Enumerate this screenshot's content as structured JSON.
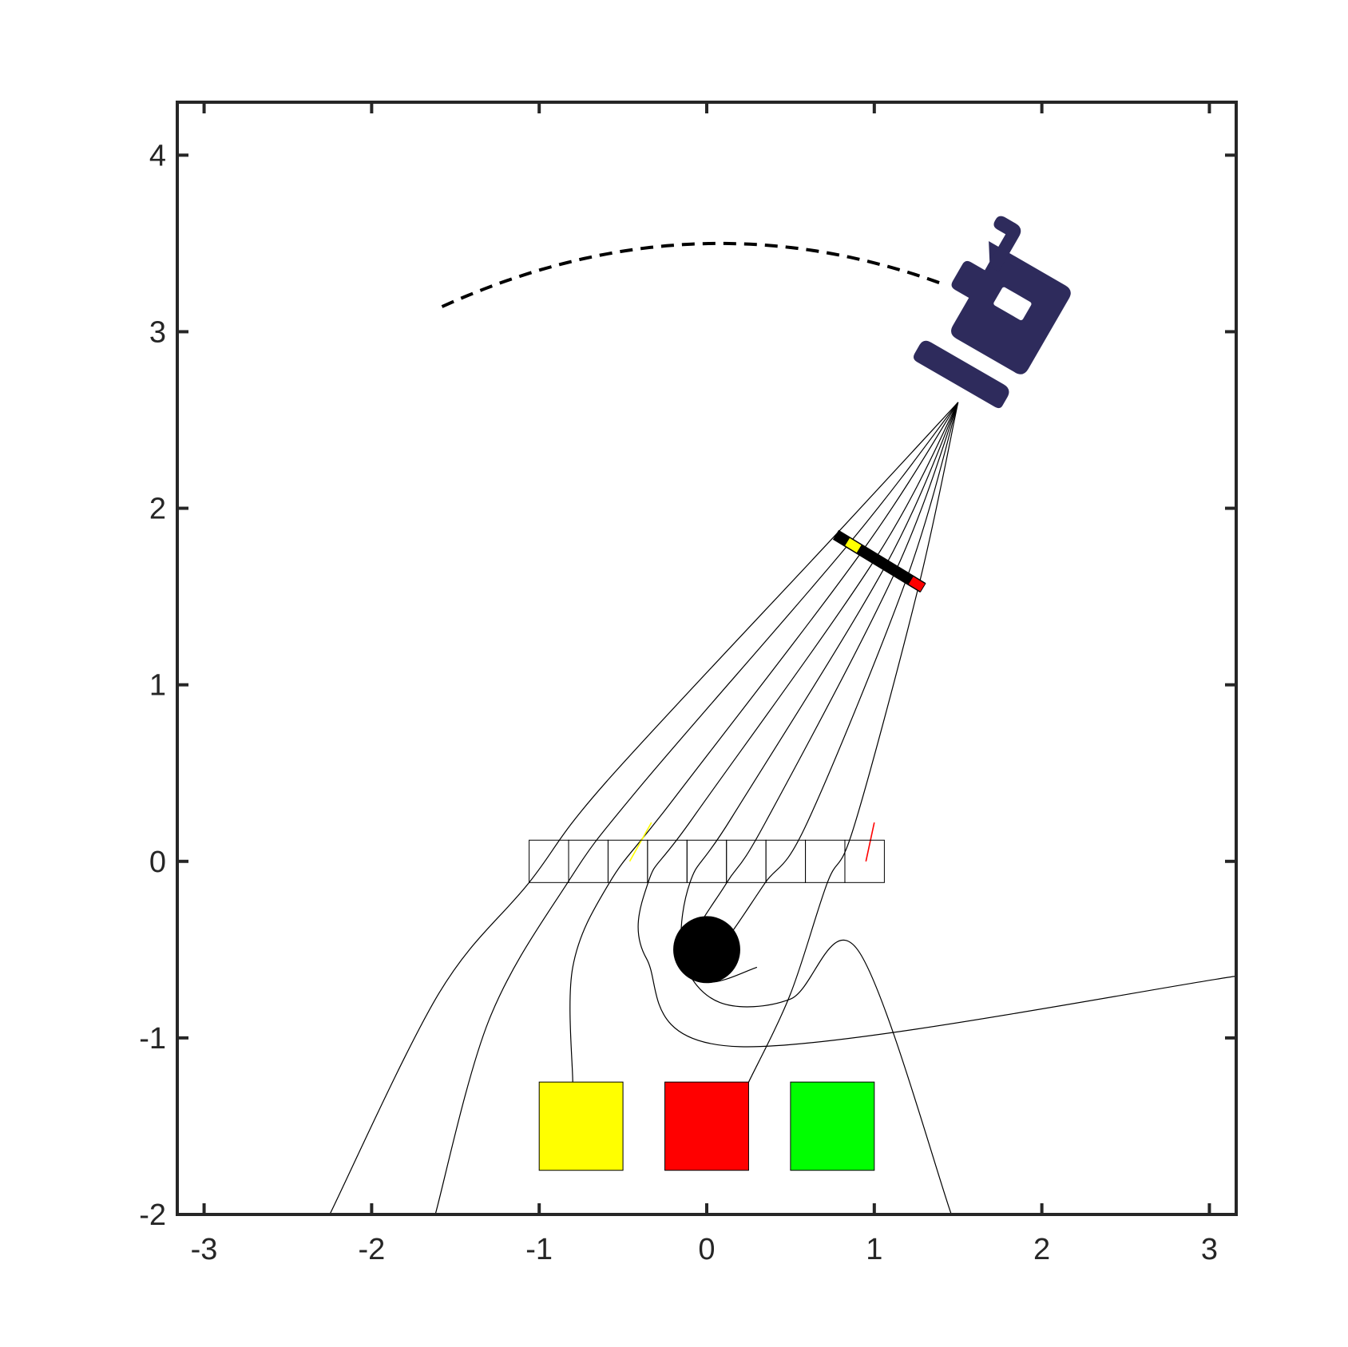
{
  "axes": {
    "xlim": [
      -3.16,
      3.16
    ],
    "ylim": [
      -2,
      4.3
    ],
    "xticks": [
      {
        "value": -3,
        "label": "-3"
      },
      {
        "value": -2,
        "label": "-2"
      },
      {
        "value": -1,
        "label": "-1"
      },
      {
        "value": 0,
        "label": "0"
      },
      {
        "value": 1,
        "label": "1"
      },
      {
        "value": 2,
        "label": "2"
      },
      {
        "value": 3,
        "label": "3"
      }
    ],
    "yticks": [
      {
        "value": -2,
        "label": "-2"
      },
      {
        "value": -1,
        "label": "-1"
      },
      {
        "value": 0,
        "label": "0"
      },
      {
        "value": 1,
        "label": "1"
      },
      {
        "value": 2,
        "label": "2"
      },
      {
        "value": 3,
        "label": "3"
      },
      {
        "value": 4,
        "label": "4"
      }
    ],
    "grid": false,
    "frame_color": "#262626"
  },
  "scene": {
    "source_point": [
      1.5,
      2.6
    ],
    "camera_color": "#2e2b5c",
    "dashed_arc": {
      "center_x": 0.08,
      "peak_y": 3.5,
      "x_start": -1.58,
      "x_end": 1.4
    },
    "detector_strip": {
      "start": [
        0.77,
        1.85
      ],
      "end": [
        1.29,
        1.55
      ],
      "color": "#000000",
      "markers": [
        {
          "t": 0.2,
          "color": "#ffff00"
        },
        {
          "t": 0.93,
          "color": "#ff0000"
        }
      ]
    },
    "lens_grid": {
      "x0": -1.06,
      "x1": 1.06,
      "y0": -0.12,
      "y1": 0.12,
      "cells": 9
    },
    "black_hole": {
      "center": [
        0,
        -0.5
      ],
      "radius": 0.2,
      "color": "#000000"
    },
    "squares": [
      {
        "name": "yellow",
        "x": [
          -1,
          -0.5
        ],
        "y": [
          -1.75,
          -1.25
        ],
        "color": "#ffff00"
      },
      {
        "name": "red",
        "x": [
          -0.25,
          0.25
        ],
        "y": [
          -1.75,
          -1.25
        ],
        "color": "#ff0000"
      },
      {
        "name": "green",
        "x": [
          0.5,
          1
        ],
        "y": [
          -1.75,
          -1.25
        ],
        "color": "#00ff00"
      }
    ]
  },
  "chart_data": {
    "type": "scatter",
    "title": "",
    "xlabel": "",
    "ylabel": "",
    "xlim": [
      -3.16,
      3.16
    ],
    "ylim": [
      -2,
      4.3
    ],
    "series": [
      {
        "values": [
          [
            1.5,
            2.6
          ],
          [
            0.77,
            1.85
          ],
          [
            -0.6,
            0.45
          ],
          [
            -1.06,
            -0.12
          ],
          [
            -1.6,
            -0.75
          ],
          [
            -2.25,
            -2.0
          ]
        ]
      },
      {
        "values": [
          [
            1.5,
            2.6
          ],
          [
            0.85,
            1.8
          ],
          [
            -0.4,
            0.42
          ],
          [
            -0.83,
            -0.12
          ],
          [
            -1.3,
            -0.9
          ],
          [
            -1.62,
            -2.0
          ]
        ]
      },
      {
        "values": [
          [
            1.5,
            2.6
          ],
          [
            0.93,
            1.76
          ],
          [
            -0.2,
            0.35
          ],
          [
            -0.58,
            -0.12
          ],
          [
            -0.8,
            -0.6
          ],
          [
            -0.8,
            -1.25
          ]
        ]
      },
      {
        "values": [
          [
            1.5,
            2.6
          ],
          [
            1.01,
            1.72
          ],
          [
            -0.08,
            0.25
          ],
          [
            -0.35,
            -0.12
          ],
          [
            -0.36,
            -0.55
          ],
          [
            0.2,
            -1.05
          ],
          [
            3.16,
            -0.65
          ]
        ]
      },
      {
        "values": [
          [
            1.5,
            2.6
          ],
          [
            1.07,
            1.68
          ],
          [
            0.15,
            0.25
          ],
          [
            -0.1,
            -0.12
          ],
          [
            -0.14,
            -0.55
          ],
          [
            0.08,
            -0.8
          ],
          [
            0.5,
            -0.78
          ],
          [
            0.9,
            -0.5
          ],
          [
            1.46,
            -2.0
          ]
        ]
      },
      {
        "values": [
          [
            1.5,
            2.6
          ],
          [
            1.13,
            1.65
          ],
          [
            0.35,
            0.22
          ],
          [
            0.12,
            -0.12
          ],
          [
            -0.08,
            -0.45
          ],
          [
            0.0,
            -0.68
          ],
          [
            0.3,
            -0.6
          ]
        ]
      },
      {
        "values": [
          [
            1.5,
            2.6
          ],
          [
            1.2,
            1.62
          ],
          [
            0.6,
            0.22
          ],
          [
            0.35,
            -0.12
          ],
          [
            0.15,
            -0.4
          ],
          [
            0.0,
            -0.58
          ]
        ]
      },
      {
        "values": [
          [
            1.5,
            2.6
          ],
          [
            1.27,
            1.58
          ],
          [
            0.88,
            0.2
          ],
          [
            0.72,
            -0.12
          ],
          [
            0.5,
            -0.75
          ],
          [
            0.25,
            -1.25
          ]
        ]
      }
    ]
  }
}
